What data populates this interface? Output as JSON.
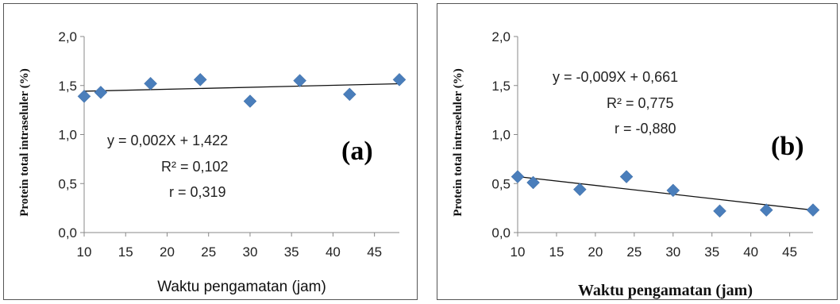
{
  "chart_data": [
    {
      "type": "scatter",
      "panel_label": "(a)",
      "xlabel": "Waktu pengamatan (jam)",
      "ylabel": "Protein total intraseluler (%)",
      "xticks": [
        "10",
        "15",
        "20",
        "25",
        "30",
        "35",
        "40",
        "45"
      ],
      "yticks": [
        "0,0",
        "0,5",
        "1,0",
        "1,5",
        "2,0"
      ],
      "xlim": [
        10,
        48
      ],
      "ylim": [
        0,
        2
      ],
      "grid": false,
      "marker_color": "#4a7ebb",
      "points": [
        {
          "x": 10,
          "y": 1.39
        },
        {
          "x": 12,
          "y": 1.43
        },
        {
          "x": 18,
          "y": 1.52
        },
        {
          "x": 24,
          "y": 1.56
        },
        {
          "x": 30,
          "y": 1.34
        },
        {
          "x": 36,
          "y": 1.55
        },
        {
          "x": 42,
          "y": 1.41
        },
        {
          "x": 48,
          "y": 1.56
        }
      ],
      "trendline": {
        "slope": 0.002,
        "intercept": 1.422
      },
      "annotations": [
        "y = 0,002X + 1,422",
        "R² = 0,102",
        "r = 0,319"
      ]
    },
    {
      "type": "scatter",
      "panel_label": "(b)",
      "xlabel": "Waktu pengamatan (jam)",
      "ylabel": "Protein total intraseluler (%)",
      "xticks": [
        "10",
        "15",
        "20",
        "25",
        "30",
        "35",
        "40",
        "45"
      ],
      "yticks": [
        "0,0",
        "0,5",
        "1,0",
        "1,5",
        "2,0"
      ],
      "xlim": [
        10,
        48
      ],
      "ylim": [
        0,
        2
      ],
      "grid": false,
      "marker_color": "#4a7ebb",
      "points": [
        {
          "x": 10,
          "y": 0.57
        },
        {
          "x": 12,
          "y": 0.51
        },
        {
          "x": 18,
          "y": 0.44
        },
        {
          "x": 24,
          "y": 0.57
        },
        {
          "x": 30,
          "y": 0.43
        },
        {
          "x": 36,
          "y": 0.22
        },
        {
          "x": 42,
          "y": 0.23
        },
        {
          "x": 48,
          "y": 0.23
        }
      ],
      "trendline": {
        "slope": -0.009,
        "intercept": 0.661
      },
      "annotations": [
        "y = -0,009X + 0,661",
        "R² = 0,775",
        "r = -0,880"
      ]
    }
  ]
}
